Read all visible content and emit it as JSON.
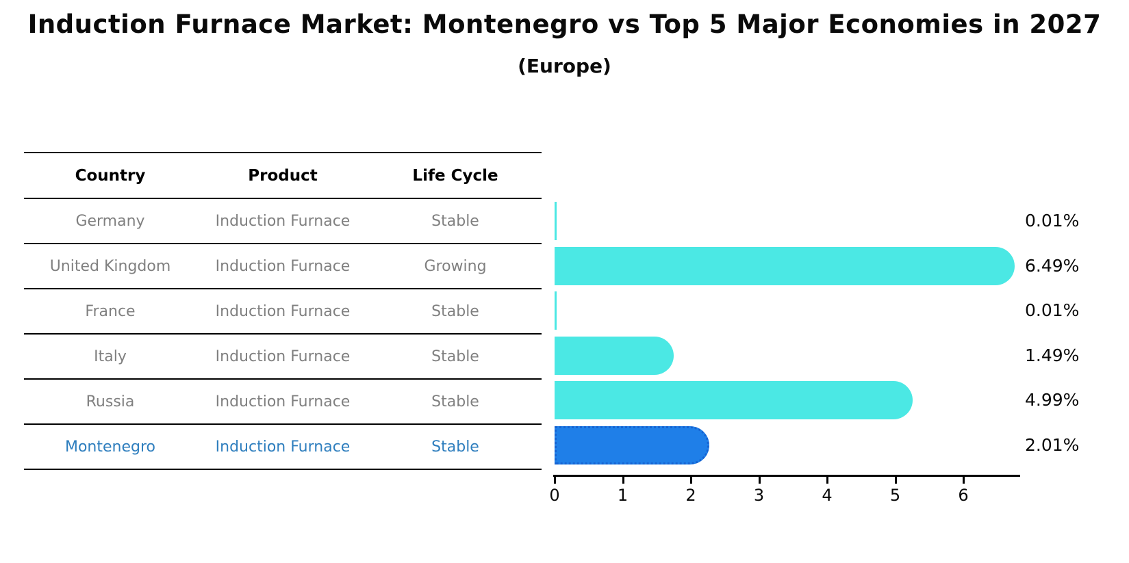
{
  "title": "Induction Furnace Market: Montenegro vs Top 5 Major Economies in 2027",
  "subtitle": "(Europe)",
  "table": {
    "headers": [
      "Country",
      "Product",
      "Life Cycle"
    ],
    "rows": [
      {
        "country": "Germany",
        "product": "Induction Furnace",
        "life_cycle": "Stable",
        "highlight": false
      },
      {
        "country": "United Kingdom",
        "product": "Induction Furnace",
        "life_cycle": "Growing",
        "highlight": false
      },
      {
        "country": "France",
        "product": "Induction Furnace",
        "life_cycle": "Stable",
        "highlight": false
      },
      {
        "country": "Italy",
        "product": "Induction Furnace",
        "life_cycle": "Stable",
        "highlight": false
      },
      {
        "country": "Russia",
        "product": "Induction Furnace",
        "life_cycle": "Stable",
        "highlight": true
      }
    ],
    "highlight_row": {
      "country": "Montenegro",
      "product": "Induction Furnace",
      "life_cycle": "Stable"
    }
  },
  "chart_data": {
    "type": "bar",
    "orientation": "horizontal",
    "title": "Induction Furnace Market: Montenegro vs Top 5 Major Economies in 2027",
    "subtitle": "(Europe)",
    "categories": [
      "Germany",
      "United Kingdom",
      "France",
      "Italy",
      "Russia",
      "Montenegro"
    ],
    "values": [
      0.01,
      6.49,
      0.01,
      1.49,
      4.99,
      2.01
    ],
    "value_labels": [
      "0.01%",
      "6.49%",
      "0.01%",
      "1.49%",
      "4.99%",
      "2.01%"
    ],
    "xticks": [
      "0",
      "1",
      "2",
      "3",
      "4",
      "5",
      "6"
    ],
    "xlim": [
      0,
      6.85
    ],
    "grid": false,
    "legend": "none",
    "bar_color": "#4be8e4",
    "highlight_bar_color": "#1f7fe8",
    "highlight_index": 5
  },
  "colors": {
    "bar_cyan": "#4be8e4",
    "bar_blue": "#1f7fe8",
    "highlight_text_blue": "#2e7ebe",
    "table_text_gray": "#808080",
    "axis_black": "#000000"
  }
}
